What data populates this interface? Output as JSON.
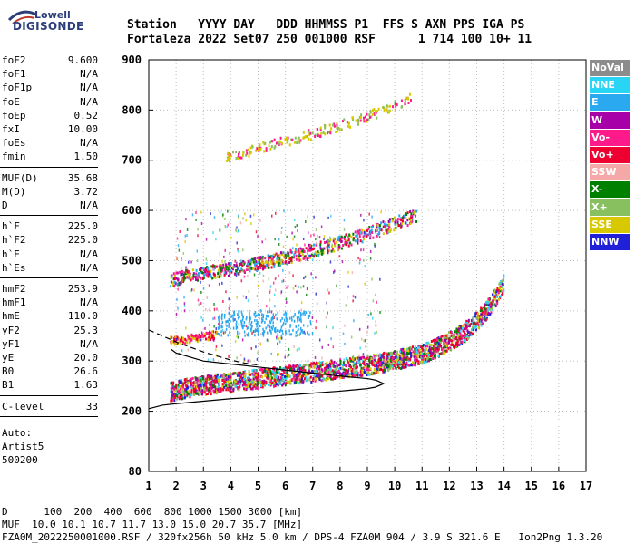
{
  "logo": {
    "line1": "Lowell",
    "line2": "DIGISONDE"
  },
  "header": {
    "line1": "Station   YYYY DAY   DDD HHMMSS P1  FFS S AXN PPS IGA PS",
    "line2": "Fortaleza 2022 Set07 250 001000 RSF      1 714 100 10+ 11"
  },
  "params": {
    "group1": [
      {
        "k": "foF2",
        "v": "9.600"
      },
      {
        "k": "foF1",
        "v": "N/A"
      },
      {
        "k": "foF1p",
        "v": "N/A"
      },
      {
        "k": "foE",
        "v": "N/A"
      },
      {
        "k": "foEp",
        "v": "0.52"
      },
      {
        "k": "fxI",
        "v": "10.00"
      },
      {
        "k": "foEs",
        "v": "N/A"
      },
      {
        "k": "fmin",
        "v": "1.50"
      }
    ],
    "group2": [
      {
        "k": "MUF(D)",
        "v": "35.68"
      },
      {
        "k": "M(D)",
        "v": "3.72"
      },
      {
        "k": "D",
        "v": "N/A"
      }
    ],
    "group3": [
      {
        "k": "h`F",
        "v": "225.0"
      },
      {
        "k": "h`F2",
        "v": "225.0"
      },
      {
        "k": "h`E",
        "v": "N/A"
      },
      {
        "k": "h`Es",
        "v": "N/A"
      }
    ],
    "group4": [
      {
        "k": "hmF2",
        "v": "253.9"
      },
      {
        "k": "hmF1",
        "v": "N/A"
      },
      {
        "k": "hmE",
        "v": "110.0"
      },
      {
        "k": "yF2",
        "v": "25.3"
      },
      {
        "k": "yF1",
        "v": "N/A"
      },
      {
        "k": "yE",
        "v": "20.0"
      },
      {
        "k": "B0",
        "v": "26.6"
      },
      {
        "k": "B1",
        "v": "1.63"
      }
    ],
    "group5": [
      {
        "k": "C-level",
        "v": "33"
      }
    ],
    "auto": [
      "Auto:",
      "Artist5",
      "500200"
    ]
  },
  "footer": {
    "line1": "D      100  200  400  600  800 1000 1500 3000 [km]",
    "line2": "MUF  10.0 10.1 10.7 11.7 13.0 15.0 20.7 35.7 [MHz]",
    "line3": "FZA0M_2022250001000.RSF / 320fx256h 50 kHz 5.0 km / DPS-4 FZA0M 904 / 3.9 S 321.6 E   Ion2Png 1.3.20"
  },
  "legend": [
    {
      "label": "NoVal",
      "color": "#8c8c8c"
    },
    {
      "label": "NNE",
      "color": "#2ad4f5"
    },
    {
      "label": "E",
      "color": "#2aa8f0"
    },
    {
      "label": "W",
      "color": "#a800a8"
    },
    {
      "label": "Vo-",
      "color": "#ff1a8c"
    },
    {
      "label": "Vo+",
      "color": "#ee0030"
    },
    {
      "label": "SSW",
      "color": "#f4a8a8"
    },
    {
      "label": "X-",
      "color": "#008000"
    },
    {
      "label": "X+",
      "color": "#88c060"
    },
    {
      "label": "SSE",
      "color": "#d8c800"
    },
    {
      "label": "NNW",
      "color": "#2020d8"
    }
  ],
  "chart_data": {
    "type": "scatter",
    "xlim": [
      1,
      17
    ],
    "ylim": [
      80,
      900
    ],
    "x_ticks": [
      1,
      2,
      3,
      4,
      5,
      6,
      7,
      8,
      9,
      10,
      11,
      12,
      13,
      14,
      15,
      16,
      17
    ],
    "y_ticks": [
      80,
      200,
      300,
      400,
      500,
      600,
      700,
      800,
      900
    ],
    "grid": "dotted",
    "series": [
      {
        "name": "O-trace F",
        "x": [
          1.8,
          2.5,
          3,
          4,
          5,
          6,
          7,
          8,
          9,
          10,
          11,
          11.5,
          12,
          12.5,
          13,
          13.5,
          14
        ],
        "y": [
          230,
          238,
          242,
          248,
          255,
          262,
          268,
          275,
          282,
          292,
          305,
          315,
          330,
          345,
          370,
          400,
          445
        ]
      },
      {
        "name": "2F trace",
        "x": [
          1.8,
          2.5,
          3,
          4,
          5,
          6,
          7,
          8,
          9,
          10,
          10.8
        ],
        "y": [
          455,
          465,
          470,
          478,
          488,
          500,
          515,
          530,
          548,
          568,
          585
        ]
      },
      {
        "name": "3F trace",
        "x": [
          3.8,
          4.5,
          5,
          6,
          7,
          8,
          9,
          10,
          10.6
        ],
        "y": [
          700,
          710,
          720,
          733,
          748,
          765,
          782,
          805,
          820
        ]
      },
      {
        "name": "E/Es trace",
        "x": [
          1.8,
          2.5,
          3,
          3.5
        ],
        "y": [
          338,
          342,
          346,
          350
        ]
      }
    ],
    "profile": {
      "x": [
        1,
        1.5,
        2,
        3,
        4,
        5,
        6,
        7,
        8,
        9,
        9.3,
        9.6,
        9.3,
        9,
        8,
        7,
        6,
        5,
        4,
        3,
        2,
        1.8
      ],
      "y": [
        205,
        212,
        215,
        220,
        225,
        228,
        232,
        236,
        240,
        245,
        248,
        255,
        262,
        265,
        270,
        276,
        282,
        288,
        294,
        300,
        316,
        324
      ]
    },
    "dashed": {
      "x": [
        1,
        1.5,
        2,
        2.5,
        3,
        3.5,
        4,
        4.5,
        5
      ],
      "y": [
        362,
        350,
        338,
        328,
        318,
        310,
        302,
        296,
        292
      ]
    }
  }
}
